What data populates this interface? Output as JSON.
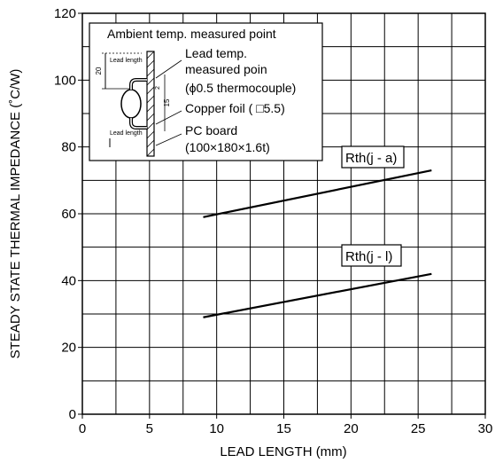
{
  "chart_data": {
    "type": "line",
    "title": "",
    "xlabel": "LEAD LENGTH (mm)",
    "ylabel": "STEADY STATE THERMAL IMPEDANCE (˚C/W)",
    "xlim": [
      0,
      30
    ],
    "ylim": [
      0,
      120
    ],
    "x_major_ticks": [
      0,
      5,
      10,
      15,
      20,
      25,
      30
    ],
    "y_major_ticks": [
      0,
      20,
      40,
      60,
      80,
      100,
      120
    ],
    "x_tick_labels": [
      "0",
      "5",
      "10",
      "15",
      "20",
      "25",
      "30"
    ],
    "y_tick_labels": [
      "0",
      "20",
      "40",
      "60",
      "80",
      "100",
      "120"
    ],
    "grid": true,
    "series": [
      {
        "name": "Rth(j - a)",
        "x": [
          9,
          26
        ],
        "y": [
          59,
          73
        ]
      },
      {
        "name": "Rth(j - l)",
        "x": [
          9,
          26
        ],
        "y": [
          29,
          42
        ]
      }
    ],
    "inset": {
      "title": "Ambient temp. measured point",
      "labels": [
        "Lead temp.",
        "measured poin",
        "(ϕ0.5 thermocouple)",
        "Copper foil ( □5.5)",
        "PC board",
        "(100×180×1.6t)"
      ],
      "dim_lead_top": "Lead length",
      "dim_lead_bottom": "Lead length",
      "dim_20": "20",
      "dim_15": "15",
      "dim_2": "2"
    },
    "colors": {
      "line": "#000000",
      "grid": "#000000",
      "background": "#ffffff"
    }
  }
}
